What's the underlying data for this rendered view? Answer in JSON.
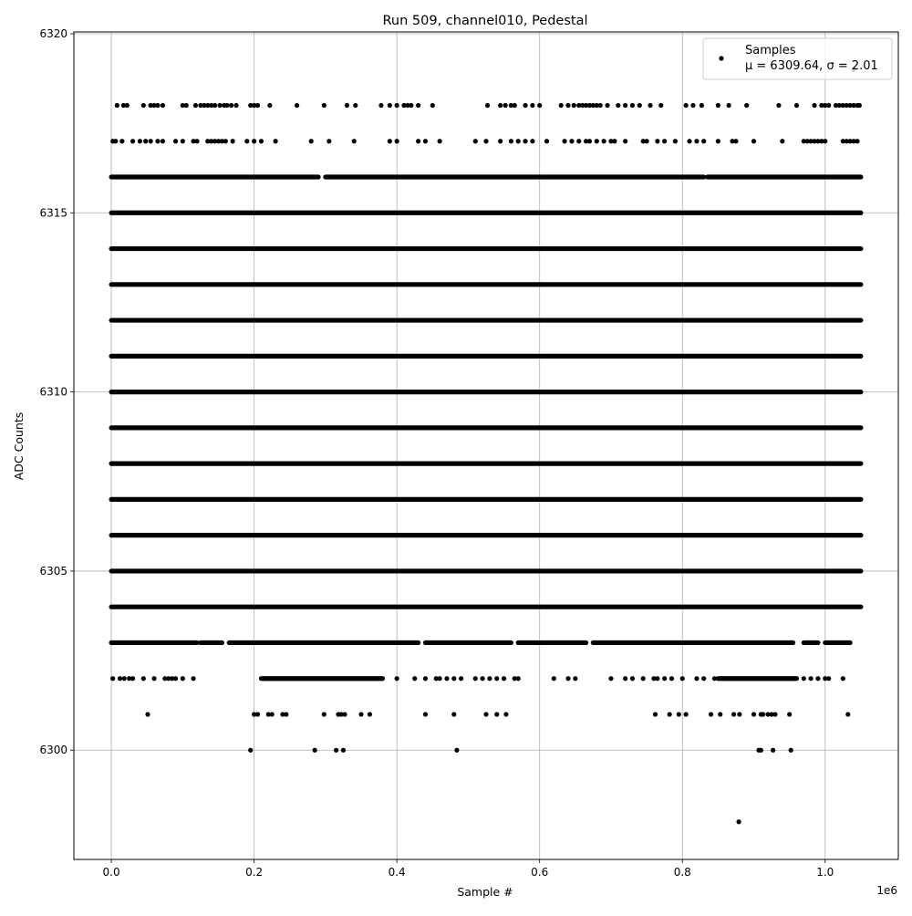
{
  "chart_data": {
    "type": "scatter",
    "title": "Run 509, channel010, Pedestal",
    "xlabel": "Sample #",
    "ylabel": "ADC Counts",
    "x_offset_label": "1e6",
    "xlim": [
      -0.0525,
      1.1025
    ],
    "ylim": [
      6296.95,
      6320.05
    ],
    "x_ticks": [
      0.0,
      0.2,
      0.4,
      0.6,
      0.8,
      1.0
    ],
    "x_tick_labels": [
      "0.0",
      "0.2",
      "0.4",
      "0.6",
      "0.8",
      "1.0"
    ],
    "y_ticks": [
      6300,
      6305,
      6310,
      6315,
      6320
    ],
    "y_tick_labels": [
      "6300",
      "6305",
      "6310",
      "6315",
      "6320"
    ],
    "grid": true,
    "legend": {
      "placement": "upper right",
      "entries": [
        {
          "name": "Samples",
          "stats": "μ = 6309.64, σ = 2.01"
        }
      ]
    },
    "marker_color": "#000000",
    "grid_color": "#b0b0b0",
    "series": [
      {
        "name": "Samples",
        "levels": [
          {
            "y": 6319,
            "points": [
              1.04
            ]
          },
          {
            "y": 6318,
            "points": [
              0.008,
              0.017,
              0.022,
              0.045,
              0.055,
              0.06,
              0.065,
              0.072,
              0.1,
              0.105,
              0.118,
              0.125,
              0.13,
              0.135,
              0.14,
              0.145,
              0.152,
              0.158,
              0.162,
              0.168,
              0.175,
              0.195,
              0.2,
              0.205,
              0.222,
              0.26,
              0.298,
              0.33,
              0.342,
              0.378,
              0.39,
              0.4,
              0.41,
              0.415,
              0.42,
              0.43,
              0.45,
              0.527,
              0.545,
              0.552,
              0.56,
              0.565,
              0.58,
              0.59,
              0.6,
              0.63,
              0.64,
              0.648,
              0.655,
              0.66,
              0.665,
              0.67,
              0.675,
              0.68,
              0.685,
              0.695,
              0.71,
              0.72,
              0.73,
              0.74,
              0.755,
              0.77,
              0.805,
              0.815,
              0.827,
              0.85,
              0.865,
              0.89,
              0.935,
              0.96,
              0.985,
              0.995,
              1.0,
              1.005,
              1.015,
              1.02,
              1.025,
              1.03,
              1.035,
              1.04,
              1.045,
              1.048
            ]
          },
          {
            "y": 6317,
            "points": [
              0.002,
              0.006,
              0.015,
              0.03,
              0.04,
              0.048,
              0.055,
              0.065,
              0.072,
              0.09,
              0.1,
              0.115,
              0.12,
              0.135,
              0.14,
              0.145,
              0.15,
              0.155,
              0.16,
              0.17,
              0.19,
              0.2,
              0.21,
              0.23,
              0.28,
              0.305,
              0.34,
              0.39,
              0.4,
              0.43,
              0.44,
              0.46,
              0.51,
              0.525,
              0.545,
              0.56,
              0.57,
              0.58,
              0.59,
              0.61,
              0.635,
              0.645,
              0.655,
              0.665,
              0.67,
              0.68,
              0.69,
              0.7,
              0.705,
              0.72,
              0.745,
              0.75,
              0.765,
              0.775,
              0.79,
              0.81,
              0.82,
              0.83,
              0.85,
              0.87,
              0.875,
              0.9,
              0.94,
              0.97,
              0.975,
              0.98,
              0.985,
              0.99,
              0.995,
              1.0,
              1.025,
              1.03,
              1.035,
              1.04,
              1.045
            ]
          },
          {
            "y": 6316,
            "ranges": [
              [
                0,
                0.29
              ],
              [
                0.3,
                0.83
              ],
              [
                0.835,
                1.05
              ]
            ]
          },
          {
            "y": 6315,
            "ranges": [
              [
                0,
                1.05
              ]
            ]
          },
          {
            "y": 6314,
            "ranges": [
              [
                0,
                1.05
              ]
            ]
          },
          {
            "y": 6313,
            "ranges": [
              [
                0,
                1.05
              ]
            ]
          },
          {
            "y": 6312,
            "ranges": [
              [
                0,
                1.05
              ]
            ]
          },
          {
            "y": 6311,
            "ranges": [
              [
                0,
                1.05
              ]
            ]
          },
          {
            "y": 6310,
            "ranges": [
              [
                0,
                1.05
              ]
            ]
          },
          {
            "y": 6309,
            "ranges": [
              [
                0,
                1.05
              ]
            ]
          },
          {
            "y": 6308,
            "ranges": [
              [
                0,
                1.05
              ]
            ]
          },
          {
            "y": 6307,
            "ranges": [
              [
                0,
                1.05
              ]
            ]
          },
          {
            "y": 6306,
            "ranges": [
              [
                0,
                1.05
              ]
            ]
          },
          {
            "y": 6305,
            "ranges": [
              [
                0,
                1.05
              ]
            ]
          },
          {
            "y": 6304,
            "ranges": [
              [
                0,
                1.05
              ]
            ]
          },
          {
            "y": 6303,
            "ranges": [
              [
                0,
                0.12
              ],
              [
                0.125,
                0.155
              ],
              [
                0.165,
                0.43
              ],
              [
                0.44,
                0.56
              ],
              [
                0.57,
                0.665
              ],
              [
                0.675,
                0.955
              ],
              [
                0.97,
                0.99
              ],
              [
                1.0,
                1.035
              ]
            ]
          },
          {
            "y": 6302,
            "ranges": [
              [
                0.21,
                0.38
              ],
              [
                0.85,
                0.96
              ]
            ],
            "points": [
              0.002,
              0.012,
              0.018,
              0.025,
              0.03,
              0.045,
              0.06,
              0.075,
              0.08,
              0.085,
              0.09,
              0.1,
              0.115,
              0.4,
              0.425,
              0.44,
              0.455,
              0.46,
              0.47,
              0.48,
              0.49,
              0.51,
              0.52,
              0.53,
              0.54,
              0.55,
              0.565,
              0.57,
              0.62,
              0.64,
              0.65,
              0.7,
              0.72,
              0.73,
              0.745,
              0.76,
              0.765,
              0.775,
              0.785,
              0.8,
              0.82,
              0.83,
              0.845,
              0.97,
              0.98,
              0.99,
              1.0,
              1.005,
              1.025
            ]
          },
          {
            "y": 6301,
            "points": [
              0.051,
              0.2,
              0.205,
              0.22,
              0.225,
              0.24,
              0.245,
              0.298,
              0.318,
              0.322,
              0.327,
              0.35,
              0.362,
              0.44,
              0.48,
              0.525,
              0.54,
              0.553,
              0.762,
              0.782,
              0.795,
              0.805,
              0.84,
              0.853,
              0.872,
              0.88,
              0.9,
              0.91,
              0.913,
              0.92,
              0.925,
              0.93,
              0.95,
              1.032
            ]
          },
          {
            "y": 6300,
            "points": [
              0.195,
              0.285,
              0.315,
              0.325,
              0.484,
              0.907,
              0.91,
              0.927,
              0.952
            ]
          },
          {
            "y": 6298,
            "points": [
              0.879
            ]
          }
        ]
      }
    ]
  }
}
